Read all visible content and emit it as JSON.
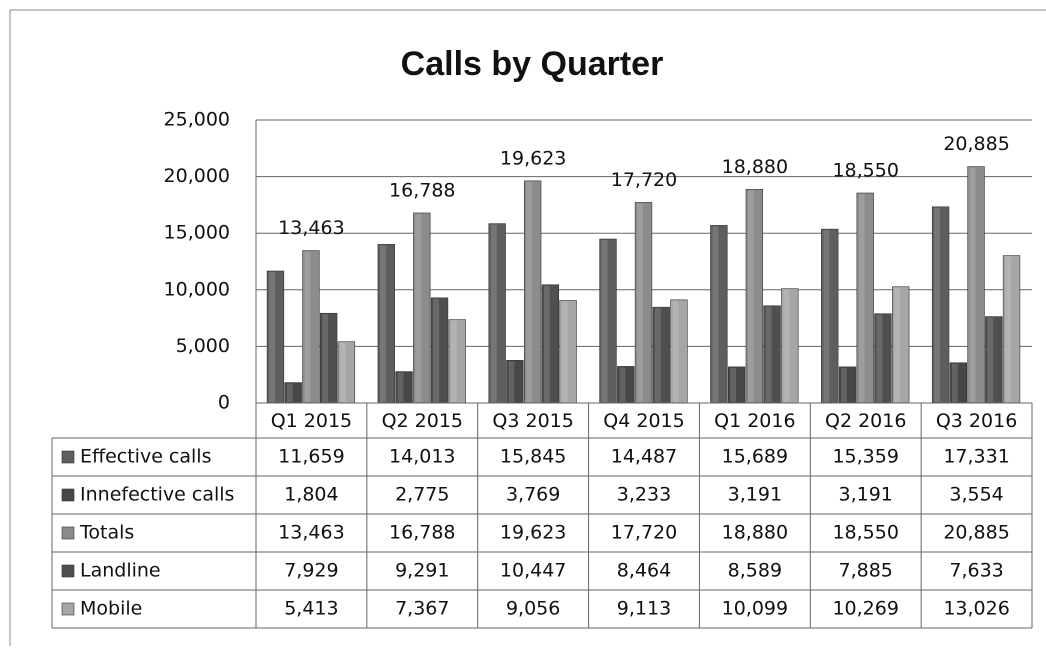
{
  "chart_data": {
    "type": "bar",
    "title": "Calls by Quarter",
    "categories": [
      "Q1 2015",
      "Q2 2015",
      "Q3 2015",
      "Q4 2015",
      "Q1 2016",
      "Q2 2016",
      "Q3 2016"
    ],
    "series": [
      {
        "name": "Effective calls",
        "color": "#5e5e5e",
        "values": [
          11659,
          14013,
          15845,
          14487,
          15689,
          15359,
          17331
        ],
        "value_labels": [
          "11,659",
          "14,013",
          "15,845",
          "14,487",
          "15,689",
          "15,359",
          "17,331"
        ]
      },
      {
        "name": "Innefective calls",
        "color": "#474747",
        "values": [
          1804,
          2775,
          3769,
          3233,
          3191,
          3191,
          3554
        ],
        "value_labels": [
          "1,804",
          "2,775",
          "3,769",
          "3,233",
          "3,191",
          "3,191",
          "3,554"
        ]
      },
      {
        "name": "Totals",
        "color": "#8c8c8c",
        "values": [
          13463,
          16788,
          19623,
          17720,
          18880,
          18550,
          20885
        ],
        "value_labels": [
          "13,463",
          "16,788",
          "19,623",
          "17,720",
          "18,880",
          "18,550",
          "20,885"
        ]
      },
      {
        "name": "Landline",
        "color": "#4f4f4f",
        "values": [
          7929,
          9291,
          10447,
          8464,
          8589,
          7885,
          7633
        ],
        "value_labels": [
          "7,929",
          "9,291",
          "10,447",
          "8,464",
          "8,589",
          "7,885",
          "7,633"
        ]
      },
      {
        "name": "Mobile",
        "color": "#a6a6a6",
        "values": [
          5413,
          7367,
          9056,
          9113,
          10099,
          10269,
          13026
        ],
        "value_labels": [
          "5,413",
          "7,367",
          "9,056",
          "9,113",
          "10,099",
          "10,269",
          "13,026"
        ]
      }
    ],
    "data_labels_series": "Totals",
    "ylim": [
      0,
      25000
    ],
    "yticks": [
      0,
      {
        "value": 5000,
        "label": "5,000"
      },
      {
        "value": 10000,
        "label": "10,000"
      },
      {
        "value": 15000,
        "label": "15,000"
      },
      {
        "value": 20000,
        "label": "20,000"
      },
      {
        "value": 25000,
        "label": "25,000"
      }
    ],
    "grid": true
  }
}
